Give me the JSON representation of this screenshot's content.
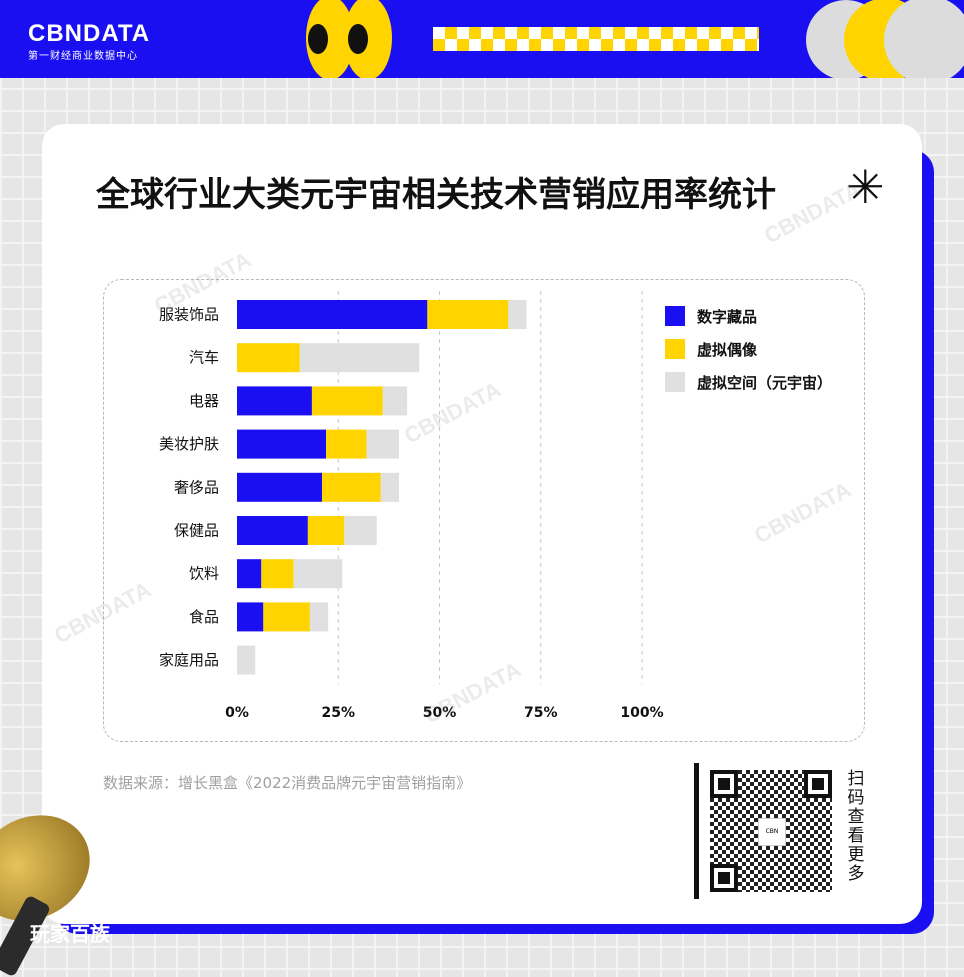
{
  "brand": {
    "logo": "CBNDATA",
    "tagline": "第一财经商业数据中心",
    "colors": {
      "blue": "#1a0ff0",
      "yellow": "#ffd400",
      "grey": "#e0e0e0"
    }
  },
  "title": "全球行业大类元宇宙相关技术营销应用率统计",
  "source": "数据来源：增长黑盒《2022消费品牌元宇宙营销指南》",
  "qr_caption": [
    "扫",
    "码",
    "查",
    "看",
    "更",
    "多"
  ],
  "bottom_text": "玩家百族",
  "chart_data": {
    "type": "bar",
    "orientation": "horizontal",
    "stacked": true,
    "categories": [
      "服装饰品",
      "汽车",
      "电器",
      "美妆护肤",
      "奢侈品",
      "保健品",
      "饮料",
      "食品",
      "家庭用品"
    ],
    "series": [
      {
        "name": "数字藏品",
        "color": "#1a0ff0",
        "values": [
          47,
          0,
          18.5,
          22,
          21,
          17.5,
          6,
          6.5,
          0
        ]
      },
      {
        "name": "虚拟偶像",
        "color": "#ffd400",
        "values": [
          20,
          15.5,
          17.5,
          10,
          14.5,
          9,
          8,
          11.5,
          0
        ]
      },
      {
        "name": "虚拟空间（元宇宙）",
        "color": "#e0e0e0",
        "values": [
          4.5,
          29.5,
          6,
          8,
          4.5,
          8,
          12,
          4.5,
          4.5
        ]
      }
    ],
    "xticks": [
      "0%",
      "25%",
      "50%",
      "75%",
      "100%"
    ],
    "xlim": [
      0,
      100
    ],
    "grid": "vertical dashed",
    "legend": "right"
  }
}
